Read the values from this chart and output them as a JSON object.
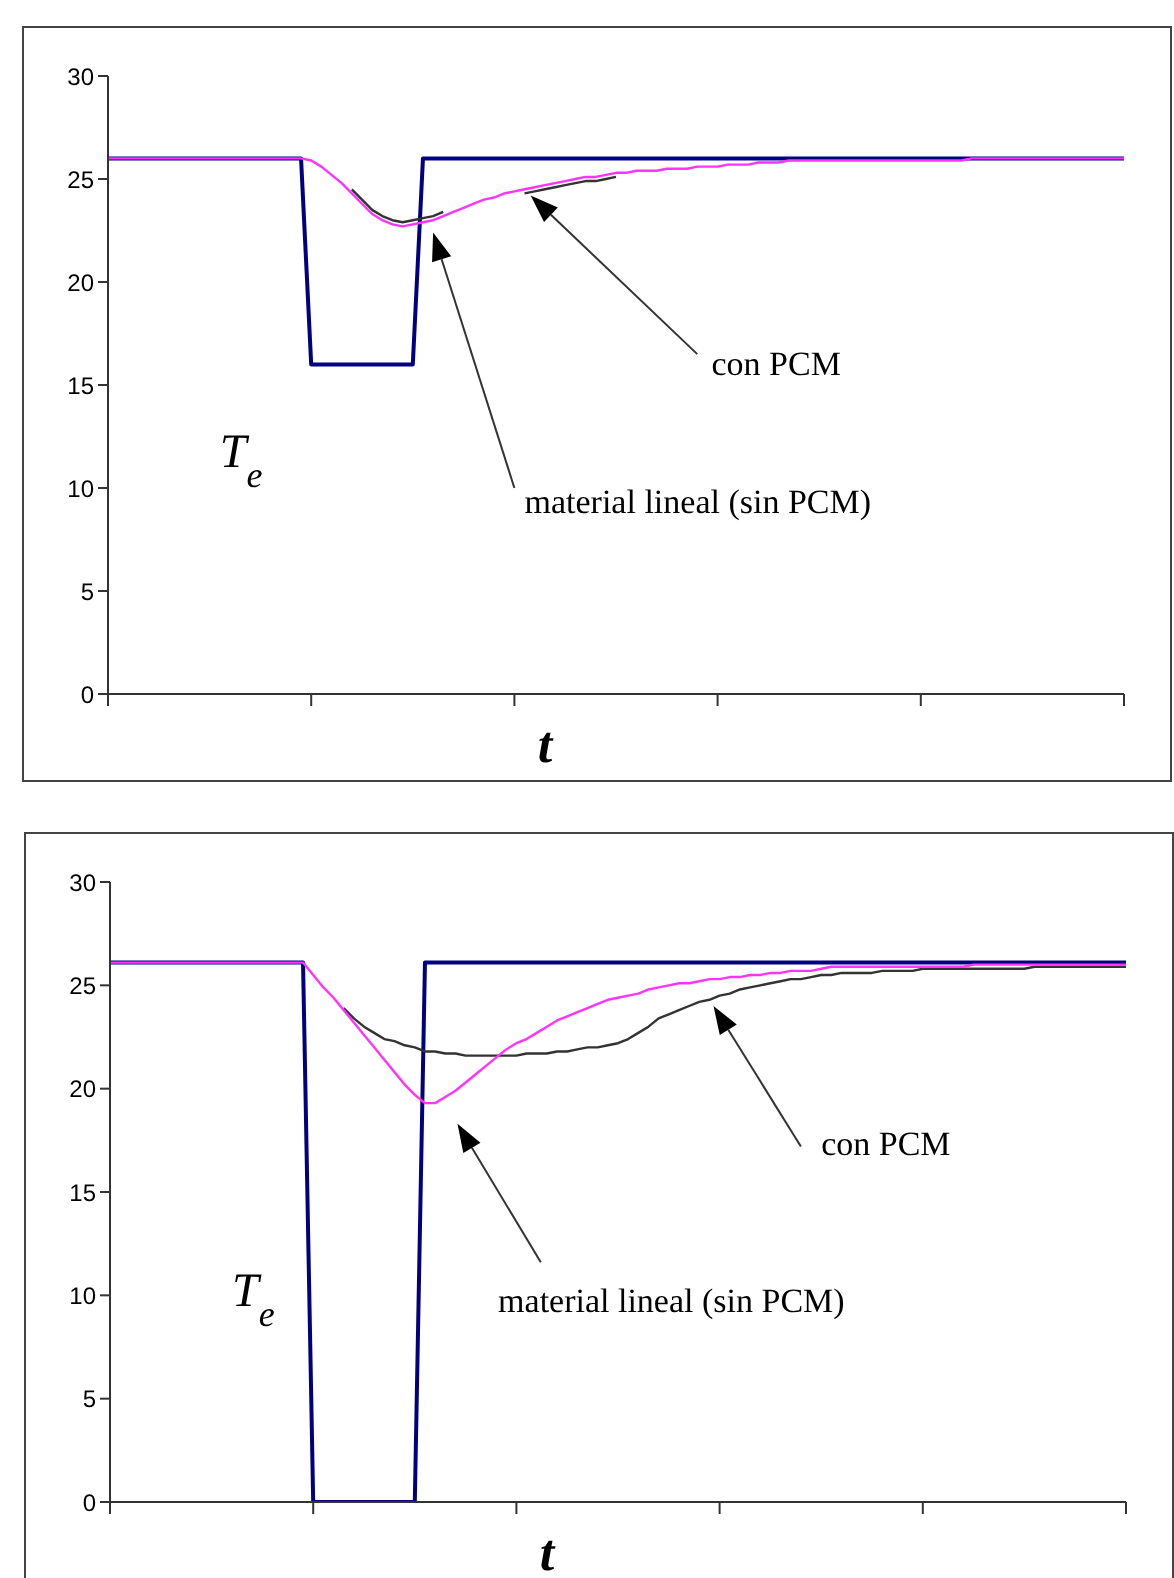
{
  "chart_data": [
    {
      "type": "line",
      "xlabel": "t",
      "annotations": [
        "T$_{e}$",
        "con PCM",
        "material lineal (sin PCM)"
      ],
      "categories": [
        null,
        null,
        null,
        null,
        null,
        null,
        null,
        null,
        null,
        null,
        null,
        null,
        null,
        null,
        null,
        null,
        null,
        null,
        null,
        null,
        null,
        null,
        null,
        null,
        null,
        null,
        null,
        null,
        null,
        null,
        null,
        null,
        null,
        null,
        null,
        null,
        null,
        null,
        null,
        null,
        null,
        null,
        null,
        null,
        null,
        null,
        null,
        null,
        null,
        null,
        null,
        null,
        null,
        null,
        null,
        null,
        null,
        null,
        null,
        null,
        null,
        null,
        null,
        null,
        null,
        null,
        null,
        null,
        null,
        null,
        null,
        null,
        null,
        null,
        null,
        null,
        null,
        null,
        null,
        null,
        null,
        null,
        null,
        null,
        null,
        null,
        null,
        null,
        null,
        null,
        null,
        null,
        null,
        null,
        null,
        null,
        null,
        null,
        null,
        null,
        null
      ],
      "ylim": [
        0,
        30
      ],
      "yticks": [
        0,
        5,
        10,
        15,
        20,
        25,
        30
      ],
      "marker": "none",
      "line_style": "solid",
      "series": [
        {
          "color": "#000080",
          "values": [
            26,
            26,
            26,
            26,
            26,
            26,
            26,
            26,
            26,
            26,
            26,
            26,
            26,
            26,
            26,
            26,
            26,
            26,
            26,
            26,
            16,
            16,
            16,
            16,
            16,
            16,
            16,
            16,
            16,
            16,
            16,
            26,
            26,
            26,
            26,
            26,
            26,
            26,
            26,
            26,
            26,
            26,
            26,
            26,
            26,
            26,
            26,
            26,
            26,
            26,
            26,
            26,
            26,
            26,
            26,
            26,
            26,
            26,
            26,
            26,
            26,
            26,
            26,
            26,
            26,
            26,
            26,
            26,
            26,
            26,
            26,
            26,
            26,
            26,
            26,
            26,
            26,
            26,
            26,
            26,
            26,
            26,
            26,
            26,
            26,
            26,
            26,
            26,
            26,
            26,
            26,
            26,
            26,
            26,
            26,
            26,
            26,
            26,
            26,
            26,
            26
          ]
        },
        {
          "color": "#333333",
          "values": [
            null,
            null,
            null,
            null,
            null,
            null,
            null,
            null,
            null,
            null,
            null,
            null,
            null,
            null,
            null,
            null,
            null,
            null,
            null,
            null,
            null,
            null,
            null,
            null,
            24.5,
            24.0,
            23.5,
            23.2,
            23.0,
            22.9,
            23.0,
            23.1,
            23.2,
            23.4,
            null,
            null,
            null,
            null,
            null,
            null,
            null,
            24.3,
            24.4,
            24.5,
            24.6,
            24.7,
            24.8,
            24.9,
            24.9,
            25.0,
            25.1,
            null,
            null,
            null,
            null,
            null,
            null,
            null,
            null,
            null,
            null,
            null,
            null,
            null,
            null,
            null,
            null,
            null,
            null,
            null,
            null,
            null,
            null,
            null,
            null,
            null,
            null,
            null,
            null,
            null,
            null,
            null,
            null,
            null,
            null,
            null,
            null,
            null,
            null,
            null,
            null,
            null,
            null,
            null,
            null,
            null,
            null,
            null,
            null,
            null,
            null
          ]
        },
        {
          "color": "#ff33ff",
          "values": [
            26,
            26,
            26,
            26,
            26,
            26,
            26,
            26,
            26,
            26,
            26,
            26,
            26,
            26,
            26,
            26,
            26,
            26,
            26,
            26,
            25.9,
            25.6,
            25.2,
            24.8,
            24.3,
            23.8,
            23.3,
            23.0,
            22.8,
            22.7,
            22.8,
            22.9,
            23.0,
            23.2,
            23.4,
            23.6,
            23.8,
            24.0,
            24.1,
            24.3,
            24.4,
            24.5,
            24.6,
            24.7,
            24.8,
            24.9,
            25.0,
            25.1,
            25.1,
            25.2,
            25.3,
            25.3,
            25.4,
            25.4,
            25.4,
            25.5,
            25.5,
            25.5,
            25.6,
            25.6,
            25.6,
            25.7,
            25.7,
            25.7,
            25.8,
            25.8,
            25.8,
            25.9,
            25.9,
            25.9,
            25.9,
            25.9,
            25.9,
            25.9,
            25.9,
            25.9,
            25.9,
            25.9,
            25.9,
            25.9,
            25.9,
            25.9,
            25.9,
            25.9,
            25.9,
            26,
            26,
            26,
            26,
            26,
            26,
            26,
            26,
            26,
            26,
            26,
            26,
            26,
            26,
            26,
            26
          ]
        }
      ]
    },
    {
      "type": "line",
      "xlabel": "t",
      "annotations": [
        "T$_{e}$",
        "con PCM",
        "material lineal (sin PCM)"
      ],
      "categories": [
        null,
        null,
        null,
        null,
        null,
        null,
        null,
        null,
        null,
        null,
        null,
        null,
        null,
        null,
        null,
        null,
        null,
        null,
        null,
        null,
        null,
        null,
        null,
        null,
        null,
        null,
        null,
        null,
        null,
        null,
        null,
        null,
        null,
        null,
        null,
        null,
        null,
        null,
        null,
        null,
        null,
        null,
        null,
        null,
        null,
        null,
        null,
        null,
        null,
        null,
        null,
        null,
        null,
        null,
        null,
        null,
        null,
        null,
        null,
        null,
        null,
        null,
        null,
        null,
        null,
        null,
        null,
        null,
        null,
        null,
        null,
        null,
        null,
        null,
        null,
        null,
        null,
        null,
        null,
        null,
        null,
        null,
        null,
        null,
        null,
        null,
        null,
        null,
        null,
        null,
        null,
        null,
        null,
        null,
        null,
        null,
        null,
        null,
        null,
        null,
        null
      ],
      "ylim": [
        0,
        30
      ],
      "yticks": [
        0,
        5,
        10,
        15,
        20,
        25,
        30
      ],
      "marker": "none",
      "line_style": "solid",
      "series": [
        {
          "color": "#000080",
          "values": [
            26.1,
            26.1,
            26.1,
            26.1,
            26.1,
            26.1,
            26.1,
            26.1,
            26.1,
            26.1,
            26.1,
            26.1,
            26.1,
            26.1,
            26.1,
            26.1,
            26.1,
            26.1,
            26.1,
            26.1,
            0,
            0,
            0,
            0,
            0,
            0,
            0,
            0,
            0,
            0,
            0,
            26.1,
            26.1,
            26.1,
            26.1,
            26.1,
            26.1,
            26.1,
            26.1,
            26.1,
            26.1,
            26.1,
            26.1,
            26.1,
            26.1,
            26.1,
            26.1,
            26.1,
            26.1,
            26.1,
            26.1,
            26.1,
            26.1,
            26.1,
            26.1,
            26.1,
            26.1,
            26.1,
            26.1,
            26.1,
            26.1,
            26.1,
            26.1,
            26.1,
            26.1,
            26.1,
            26.1,
            26.1,
            26.1,
            26.1,
            26.1,
            26.1,
            26.1,
            26.1,
            26.1,
            26.1,
            26.1,
            26.1,
            26.1,
            26.1,
            26.1,
            26.1,
            26.1,
            26.1,
            26.1,
            26.1,
            26.1,
            26.1,
            26.1,
            26.1,
            26.1,
            26.1,
            26.1,
            26.1,
            26.1,
            26.1,
            26.1,
            26.1,
            26.1,
            26.1,
            26.1
          ]
        },
        {
          "color": "#333333",
          "values": [
            null,
            null,
            null,
            null,
            null,
            null,
            null,
            null,
            null,
            null,
            null,
            null,
            null,
            null,
            null,
            null,
            null,
            null,
            null,
            null,
            null,
            null,
            null,
            23.9,
            23.4,
            23.0,
            22.7,
            22.4,
            22.3,
            22.1,
            22.0,
            21.8,
            21.8,
            21.7,
            21.7,
            21.6,
            21.6,
            21.6,
            21.6,
            21.6,
            21.6,
            21.7,
            21.7,
            21.7,
            21.8,
            21.8,
            21.9,
            22.0,
            22.0,
            22.1,
            22.2,
            22.4,
            22.7,
            23.0,
            23.4,
            23.6,
            23.8,
            24.0,
            24.2,
            24.3,
            24.5,
            24.6,
            24.8,
            24.9,
            25.0,
            25.1,
            25.2,
            25.3,
            25.3,
            25.4,
            25.5,
            25.5,
            25.6,
            25.6,
            25.6,
            25.6,
            25.7,
            25.7,
            25.7,
            25.7,
            25.8,
            25.8,
            25.8,
            25.8,
            25.8,
            25.8,
            25.8,
            25.8,
            25.8,
            25.8,
            25.8,
            25.9,
            25.9,
            25.9,
            25.9,
            25.9,
            25.9,
            25.9,
            25.9,
            25.9,
            25.9
          ]
        },
        {
          "color": "#ff33ff",
          "values": [
            26.1,
            26.1,
            26.1,
            26.1,
            26.1,
            26.1,
            26.1,
            26.1,
            26.1,
            26.1,
            26.1,
            26.1,
            26.1,
            26.1,
            26.1,
            26.1,
            26.1,
            26.1,
            26.1,
            26.1,
            25.5,
            24.9,
            24.4,
            23.8,
            23.2,
            22.6,
            22.0,
            21.4,
            20.8,
            20.2,
            19.7,
            19.3,
            19.3,
            19.6,
            19.9,
            20.3,
            20.7,
            21.1,
            21.5,
            21.9,
            22.2,
            22.4,
            22.7,
            23.0,
            23.3,
            23.5,
            23.7,
            23.9,
            24.1,
            24.3,
            24.4,
            24.5,
            24.6,
            24.8,
            24.9,
            25.0,
            25.1,
            25.1,
            25.2,
            25.3,
            25.3,
            25.4,
            25.4,
            25.5,
            25.5,
            25.6,
            25.6,
            25.7,
            25.7,
            25.7,
            25.8,
            25.9,
            25.9,
            25.9,
            25.9,
            25.9,
            25.9,
            25.9,
            25.9,
            25.9,
            25.9,
            25.9,
            25.9,
            25.9,
            25.9,
            26.0,
            26.0,
            26.0,
            26.0,
            26.0,
            26.0,
            26.0,
            26.0,
            26.0,
            26.0,
            26.0,
            26.0,
            26.0,
            26.0,
            26.0,
            26.0
          ]
        }
      ]
    }
  ]
}
